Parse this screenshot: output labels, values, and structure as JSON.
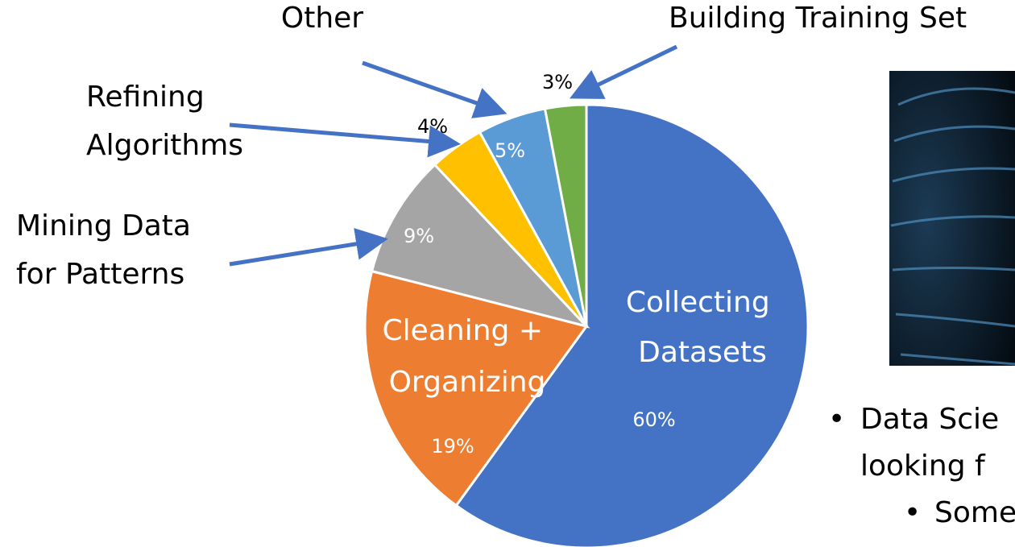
{
  "chart_data": {
    "type": "pie",
    "categories": [
      "Collecting Datasets",
      "Cleaning + Organizing",
      "Mining Data for Patterns",
      "Refining Algorithms",
      "Other",
      "Building Training Set"
    ],
    "values": [
      60,
      19,
      9,
      4,
      5,
      3
    ],
    "value_labels": [
      "60%",
      "19%",
      "9%",
      "4%",
      "5%",
      "3%"
    ],
    "colors": [
      "#4472c4",
      "#ed7d31",
      "#a5a5a5",
      "#ffc000",
      "#5b9bd5",
      "#70ad47"
    ]
  },
  "side_text": {
    "bullets": [
      "Data Scie",
      "looking f"
    ],
    "sub_bullets": [
      "Some"
    ]
  }
}
